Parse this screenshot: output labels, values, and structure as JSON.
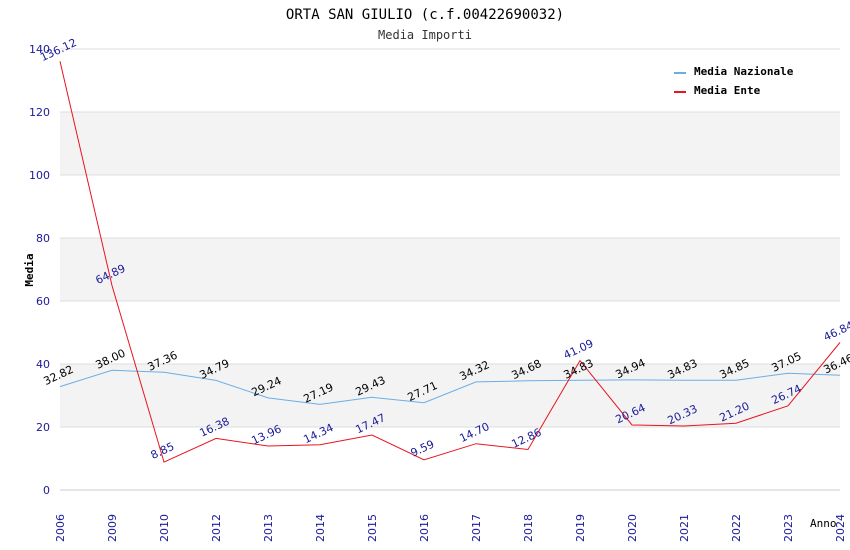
{
  "chart_data": {
    "type": "line",
    "title": "ORTA SAN GIULIO (c.f.00422690032)",
    "subtitle": "Media Importi",
    "xlabel": "Anno",
    "ylabel": "Media",
    "ylim": [
      0,
      140
    ],
    "yticks": [
      0,
      20,
      40,
      60,
      80,
      100,
      120,
      140
    ],
    "grid": true,
    "legend_position": "top-right",
    "categories": [
      "2006",
      "2009",
      "2010",
      "2012",
      "2013",
      "2014",
      "2015",
      "2016",
      "2017",
      "2018",
      "2019",
      "2020",
      "2021",
      "2022",
      "2023",
      "2024"
    ],
    "series": [
      {
        "name": "Media Nazionale",
        "color": "#6aaee8",
        "label_color": "#000000",
        "values": [
          32.82,
          38.0,
          37.36,
          34.79,
          29.24,
          27.19,
          29.43,
          27.71,
          34.32,
          34.68,
          34.83,
          34.94,
          34.83,
          34.85,
          37.05,
          36.46
        ],
        "labels": [
          "32.82",
          "38.00",
          "37.36",
          "34.79",
          "29.24",
          "27.19",
          "29.43",
          "27.71",
          "34.32",
          "34.68",
          "34.83",
          "34.94",
          "34.83",
          "34.85",
          "37.05",
          "36.46"
        ]
      },
      {
        "name": "Media Ente",
        "color": "#e8141e",
        "label_color": "#1a1a99",
        "values": [
          136.12,
          64.89,
          8.85,
          16.38,
          13.96,
          14.34,
          17.47,
          9.59,
          14.7,
          12.86,
          41.09,
          20.64,
          20.33,
          21.2,
          26.74,
          46.84
        ],
        "labels": [
          "136.12",
          "64.89",
          "8.85",
          "16.38",
          "13.96",
          "14.34",
          "17.47",
          "9.59",
          "14.70",
          "12.86",
          "41.09",
          "20.64",
          "20.33",
          "21.20",
          "26.74",
          "46.84"
        ]
      }
    ],
    "colors": {
      "band": "#f3f3f3",
      "gridline": "#dddddd",
      "axis_tick_text": "#1a1a99",
      "title_text": "#000000",
      "subtitle_text": "#333333"
    }
  }
}
